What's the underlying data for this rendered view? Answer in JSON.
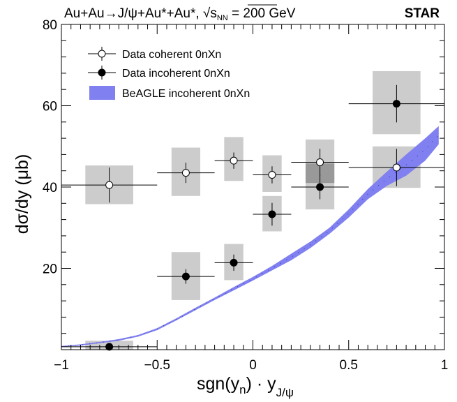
{
  "header": {
    "title_prefix": "Au+Au→J/ψ+Au*+Au*, ",
    "sqrt": "√",
    "s": "s",
    "s_sub": "NN",
    "title_suffix": " = 200 GeV",
    "experiment": "STAR"
  },
  "axes": {
    "x_title_main": "sgn(y",
    "x_title_n": "n",
    "x_title_mid": ") · y",
    "x_title_sub": "J/ψ",
    "y_title": "dσ/dy (μb)"
  },
  "colors": {
    "band": "#8080f0",
    "syst_box": "#cccccc",
    "syst_box_overlap": "#999999",
    "marker_open": "#ffffff",
    "marker_filled": "#000000"
  },
  "legend": {
    "coherent": "Data coherent 0nXn",
    "incoherent": "Data incoherent 0nXn",
    "beagle": "BeAGLE incoherent 0nXn"
  },
  "chart_data": {
    "type": "scatter",
    "xlim": [
      -1,
      1
    ],
    "ylim": [
      0,
      80
    ],
    "x_ticks": [
      -1,
      -0.5,
      0,
      0.5,
      1
    ],
    "x_tick_labels": [
      "−1",
      "−0.5",
      "0",
      "0.5",
      "1"
    ],
    "y_ticks": [
      20,
      40,
      60,
      80
    ],
    "y_tick_labels": [
      "20",
      "40",
      "60",
      "80"
    ],
    "grid": false,
    "legend_position": "top-left",
    "series": [
      {
        "name": "Data coherent 0nXn",
        "marker": "open-circle",
        "points": [
          {
            "x": -0.75,
            "y": 40.5,
            "xlo": -1.0,
            "xhi": -0.5,
            "stat": 4.3,
            "syst_dx": 0.125,
            "syst_lo": 4.7,
            "syst_hi": 4.8
          },
          {
            "x": -0.35,
            "y": 43.5,
            "xlo": -0.5,
            "xhi": -0.2,
            "stat": 2.5,
            "syst_dx": 0.075,
            "syst_lo": 5.7,
            "syst_hi": 6.2
          },
          {
            "x": -0.1,
            "y": 46.5,
            "xlo": -0.2,
            "xhi": 0.0,
            "stat": 2.0,
            "syst_dx": 0.05,
            "syst_lo": 5.0,
            "syst_hi": 5.8
          },
          {
            "x": 0.1,
            "y": 43.0,
            "xlo": 0.0,
            "xhi": 0.2,
            "stat": 2.1,
            "syst_dx": 0.05,
            "syst_lo": 4.2,
            "syst_hi": 4.8
          },
          {
            "x": 0.35,
            "y": 46.1,
            "xlo": 0.2,
            "xhi": 0.5,
            "stat": 3.3,
            "syst_dx": 0.075,
            "syst_lo": 5.1,
            "syst_hi": 5.6
          },
          {
            "x": 0.75,
            "y": 44.8,
            "xlo": 0.5,
            "xhi": 1.0,
            "stat": 4.6,
            "syst_dx": 0.125,
            "syst_lo": 5.0,
            "syst_hi": 5.2
          }
        ]
      },
      {
        "name": "Data incoherent 0nXn",
        "marker": "filled-circle",
        "points": [
          {
            "x": -0.75,
            "y": 0.7,
            "xlo": -1.0,
            "xhi": -0.5,
            "stat": 0.3,
            "syst_dx": 0.125,
            "syst_lo": 0.7,
            "syst_hi": 1.5
          },
          {
            "x": -0.35,
            "y": 18.0,
            "xlo": -0.5,
            "xhi": -0.2,
            "stat": 1.8,
            "syst_dx": 0.075,
            "syst_lo": 5.8,
            "syst_hi": 6.0
          },
          {
            "x": -0.1,
            "y": 21.4,
            "xlo": -0.2,
            "xhi": 0.0,
            "stat": 2.0,
            "syst_dx": 0.05,
            "syst_lo": 4.3,
            "syst_hi": 4.6
          },
          {
            "x": 0.1,
            "y": 33.3,
            "xlo": 0.0,
            "xhi": 0.2,
            "stat": 2.8,
            "syst_dx": 0.05,
            "syst_lo": 4.2,
            "syst_hi": 4.5
          },
          {
            "x": 0.35,
            "y": 40.0,
            "xlo": 0.2,
            "xhi": 0.5,
            "stat": 3.0,
            "syst_dx": 0.075,
            "syst_lo": 5.5,
            "syst_hi": 5.8
          },
          {
            "x": 0.75,
            "y": 60.5,
            "xlo": 0.5,
            "xhi": 1.0,
            "stat": 4.6,
            "syst_dx": 0.125,
            "syst_lo": 7.5,
            "syst_hi": 8.0
          }
        ]
      }
    ],
    "band": {
      "name": "BeAGLE incoherent 0nXn",
      "x": [
        -1.0,
        -0.9,
        -0.8,
        -0.7,
        -0.6,
        -0.5,
        -0.4,
        -0.3,
        -0.2,
        -0.1,
        0.0,
        0.1,
        0.2,
        0.3,
        0.4,
        0.5,
        0.6,
        0.7,
        0.8,
        0.9,
        0.97
      ],
      "lo": [
        0.7,
        1.0,
        1.6,
        2.2,
        3.2,
        4.8,
        7.2,
        9.7,
        12.2,
        14.6,
        17.0,
        19.5,
        22.0,
        25.0,
        28.5,
        32.5,
        37.0,
        40.3,
        42.8,
        46.5,
        50.5
      ],
      "hi": [
        0.9,
        1.3,
        1.9,
        2.6,
        3.6,
        5.3,
        7.7,
        10.3,
        12.8,
        15.4,
        17.9,
        20.6,
        23.6,
        26.6,
        30.0,
        34.5,
        39.5,
        43.8,
        48.0,
        52.0,
        55.0
      ]
    }
  }
}
